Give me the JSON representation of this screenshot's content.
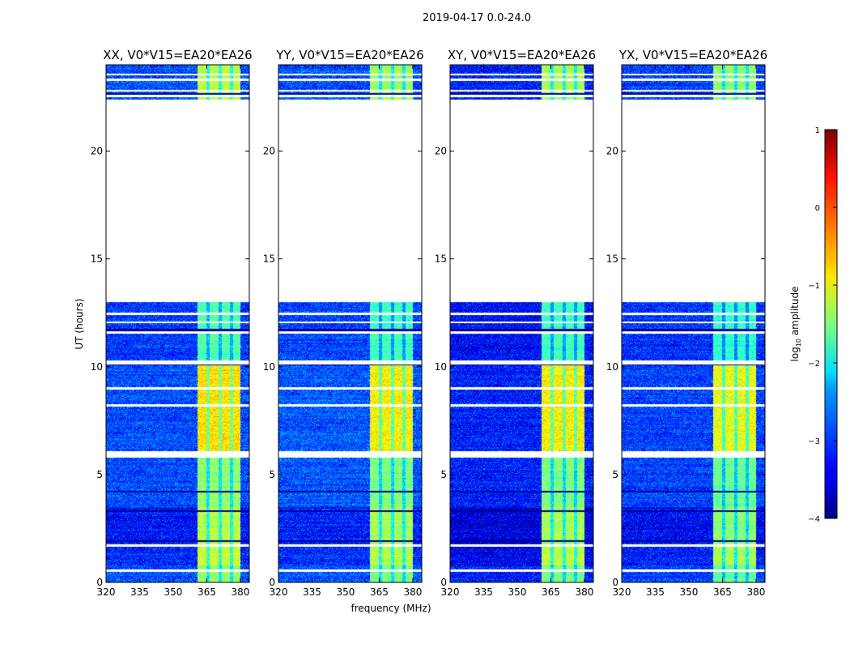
{
  "chart_data": {
    "type": "heatmap",
    "title": "2019-04-17 0.0-24.0",
    "xlabel": "frequency (MHz)",
    "ylabel": "UT (hours)",
    "xlim": [
      320,
      384
    ],
    "ylim": [
      0,
      24
    ],
    "xticks": [
      320,
      335,
      350,
      365,
      380
    ],
    "yticks": [
      0,
      5,
      10,
      15,
      20
    ],
    "colorbar": {
      "label_prefix": "log",
      "label_sub": "10",
      "label_suffix": " amplitude",
      "colormap": "jet",
      "range": [
        -4,
        1
      ],
      "ticks": [
        1,
        0,
        -1,
        -2,
        -3,
        -4
      ],
      "tick_labels": [
        "1",
        "0",
        "−1",
        "−2",
        "−3",
        "−4"
      ]
    },
    "panels": [
      {
        "title": "XX, V0*V15=EA20*EA26",
        "bg_offset": 0.0,
        "band_offset": 0.1
      },
      {
        "title": "YY, V0*V15=EA20*EA26",
        "bg_offset": 0.05,
        "band_offset": 0.0
      },
      {
        "title": "XY, V0*V15=EA20*EA26",
        "bg_offset": -0.25,
        "band_offset": 0.0
      },
      {
        "title": "YX, V0*V15=EA20*EA26",
        "bg_offset": -0.05,
        "band_offset": -0.1
      }
    ],
    "signal_band_mhz": [
      361,
      380
    ],
    "band_dim_channels_mhz": [
      365.5,
      371,
      376
    ],
    "time_segments": [
      {
        "start": 0.0,
        "end": 0.8,
        "background": -3.0,
        "band": -1.5
      },
      {
        "start": 0.8,
        "end": 1.7,
        "background": -3.2,
        "band": -1.2
      },
      {
        "start": 1.75,
        "end": 3.5,
        "background": -3.3,
        "band": -1.3
      },
      {
        "start": 3.5,
        "end": 5.8,
        "background": -3.0,
        "band": -1.5
      },
      {
        "start": 6.1,
        "end": 10.1,
        "background": -3.0,
        "band": -0.85
      },
      {
        "start": 10.3,
        "end": 13.0,
        "background": -3.1,
        "band": -1.8
      },
      {
        "start": 22.4,
        "end": 24.0,
        "background": -3.0,
        "band": -1.3
      }
    ],
    "gaps_hours": [
      0.55,
      1.72,
      5.95,
      6.05,
      8.2,
      9.0,
      10.22,
      11.58,
      12.05,
      12.45,
      22.55,
      22.8,
      23.3,
      23.55
    ],
    "low_amplitude_rows_hours": [
      1.9,
      3.3,
      4.2,
      10.1,
      11.7,
      22.65
    ]
  }
}
